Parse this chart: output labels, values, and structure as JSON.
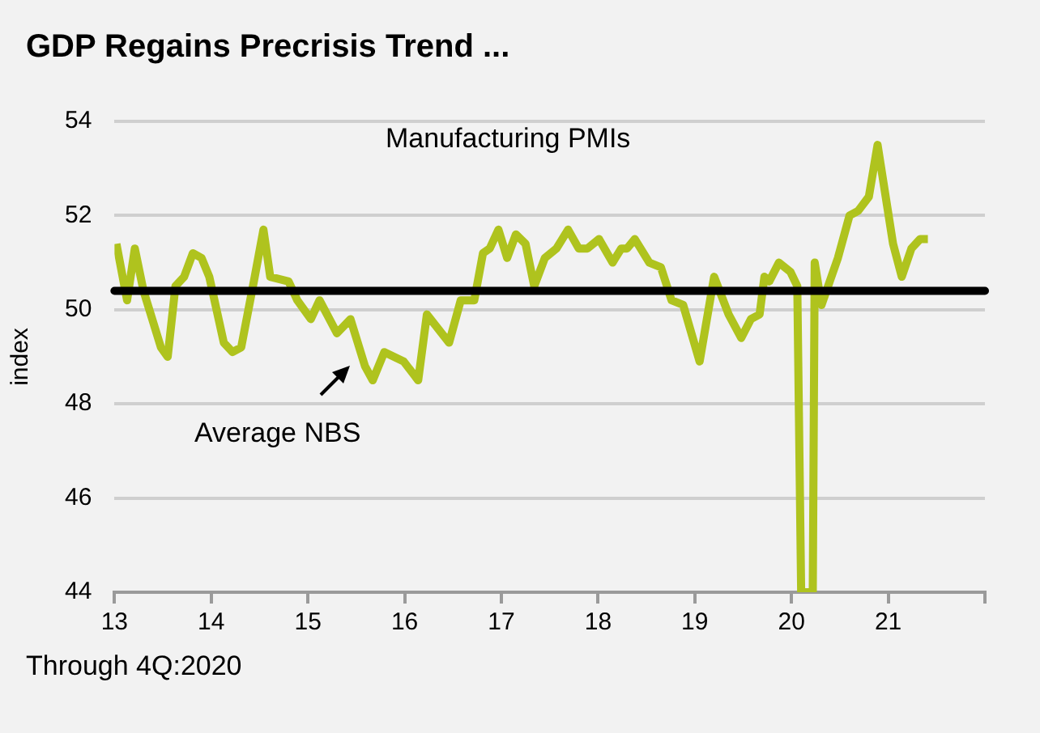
{
  "chart_data": {
    "type": "line",
    "title": "GDP Regains Precrisis Trend ...",
    "ylabel": "index",
    "annotations": [
      "Manufacturing PMIs",
      "Average NBS",
      "Through 4Q:2020"
    ],
    "series": [
      {
        "color": "#afc31e",
        "x": [
          13.02,
          13.13,
          13.21,
          13.3,
          13.48,
          13.55,
          13.63,
          13.72,
          13.81,
          13.9,
          13.98,
          14.13,
          14.22,
          14.31,
          14.45,
          14.54,
          14.61,
          14.8,
          14.89,
          15.03,
          15.12,
          15.3,
          15.44,
          15.59,
          15.67,
          15.79,
          15.99,
          16.14,
          16.23,
          16.46,
          16.58,
          16.72,
          16.81,
          16.88,
          16.97,
          17.06,
          17.15,
          17.25,
          17.34,
          17.45,
          17.57,
          17.69,
          17.8,
          17.89,
          18.01,
          18.15,
          18.24,
          18.3,
          18.38,
          18.53,
          18.65,
          18.76,
          18.88,
          19.05,
          19.2,
          19.35,
          19.48,
          19.58,
          19.67,
          19.72,
          19.77,
          19.87,
          19.99,
          20.06,
          20.1,
          20.22,
          20.24,
          20.31,
          20.48,
          20.6,
          20.69,
          20.8,
          20.89,
          21.05,
          21.14,
          21.24,
          21.33,
          21.41
        ],
        "values": [
          51.4,
          50.2,
          51.3,
          50.4,
          49.2,
          49.0,
          50.5,
          50.7,
          51.2,
          51.1,
          50.7,
          49.3,
          49.1,
          49.2,
          50.7,
          51.7,
          50.7,
          50.6,
          50.2,
          49.8,
          50.2,
          49.5,
          49.8,
          48.8,
          48.5,
          49.1,
          48.9,
          48.5,
          49.9,
          49.3,
          50.2,
          50.2,
          51.2,
          51.3,
          51.7,
          51.1,
          51.6,
          51.4,
          50.5,
          51.1,
          51.3,
          51.7,
          51.3,
          51.3,
          51.5,
          51.0,
          51.3,
          51.3,
          51.5,
          51.0,
          50.9,
          50.2,
          50.1,
          48.9,
          50.7,
          49.9,
          49.4,
          49.8,
          49.9,
          50.7,
          50.6,
          51.0,
          50.8,
          50.5,
          44,
          44,
          51.0,
          50.1,
          51.1,
          52.0,
          52.1,
          52.4,
          53.5,
          51.4,
          50.7,
          51.3,
          51.5,
          51.5
        ]
      }
    ],
    "xlim": [
      13,
      22
    ],
    "xticks": [
      13,
      14,
      15,
      16,
      17,
      18,
      19,
      20,
      21,
      {
        "value": 22,
        "label": null
      }
    ],
    "ylim": [
      44,
      54
    ],
    "yticks": [
      44,
      46,
      48,
      50,
      52,
      54
    ],
    "ref_lines": [
      {
        "axis": "y",
        "value": 50.4,
        "color": "#000000"
      }
    ],
    "grid": "y",
    "legend": false
  }
}
